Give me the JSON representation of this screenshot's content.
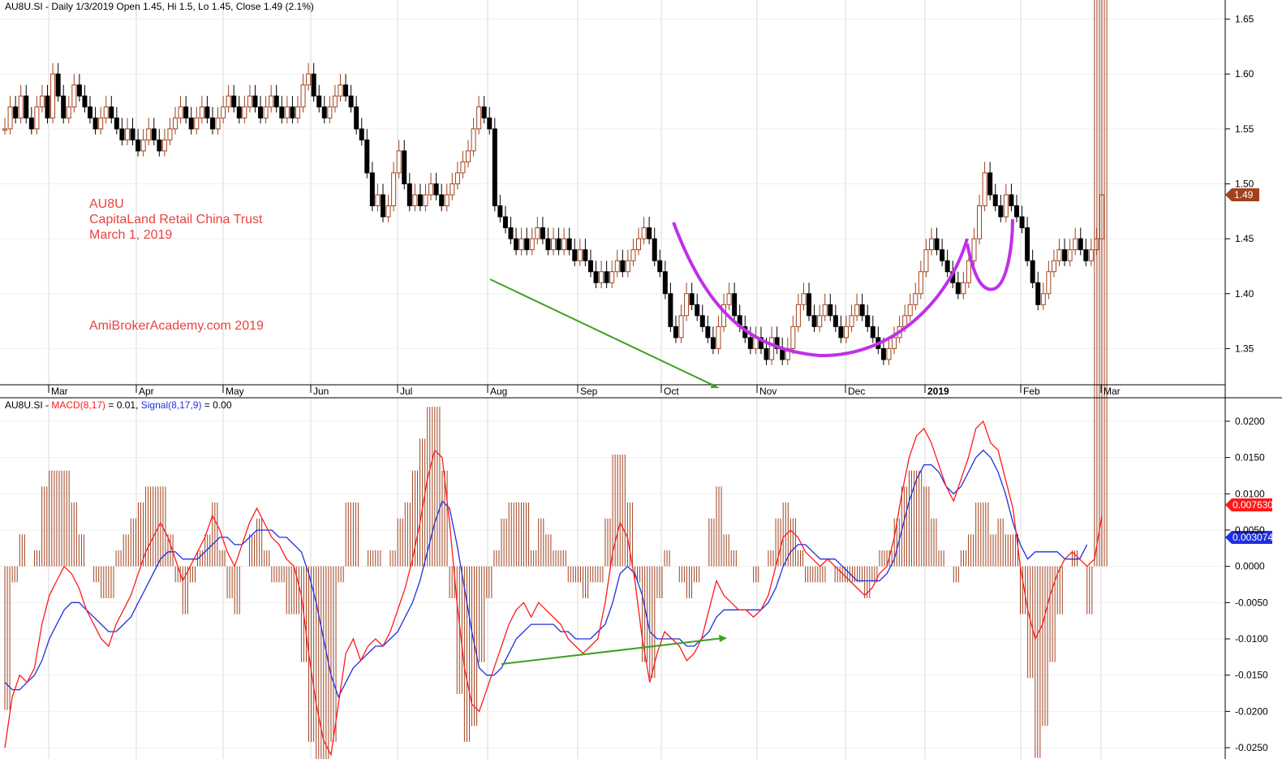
{
  "header": {
    "price_title": "AU8U.SI - Daily 1/3/2019 Open 1.45, Hi 1.5, Lo 1.45, Close 1.49 (2.1%)",
    "macd_prefix": "AU8U.SI - ",
    "macd_label": "MACD(8,17)",
    "macd_value": " = 0.01, ",
    "signal_label": "Signal(8,17,9)",
    "signal_value": " = 0.00"
  },
  "annotations": {
    "ticker": "AU8U",
    "name": "CapitaLand Retail China Trust",
    "date": "March 1, 2019",
    "site": "AmiBrokerAcademy.com  2019"
  },
  "colors": {
    "up": "#a0421e",
    "down": "#000000",
    "macd": "#ff1a1a",
    "signal": "#1f2fe0",
    "hist": "#a0421e",
    "cup": "#c030e8",
    "trend": "#3fa020",
    "text_red": "#e8433e"
  },
  "chart_data": [
    {
      "type": "candlestick",
      "months": [
        "Mar",
        "Apr",
        "May",
        "Jun",
        "Jul",
        "Aug",
        "Sep",
        "Oct",
        "Nov",
        "Dec",
        "2019",
        "Feb",
        "Mar"
      ],
      "ylim": [
        1.32,
        1.66
      ],
      "y_ticks": [
        "1.65",
        "1.60",
        "1.55",
        "1.50",
        "1.45",
        "1.40",
        "1.35"
      ],
      "last_price_tag": "1.49",
      "close_series": [
        1.55,
        1.57,
        1.56,
        1.58,
        1.56,
        1.55,
        1.57,
        1.58,
        1.56,
        1.6,
        1.58,
        1.56,
        1.57,
        1.59,
        1.58,
        1.57,
        1.56,
        1.55,
        1.56,
        1.57,
        1.56,
        1.55,
        1.54,
        1.55,
        1.54,
        1.53,
        1.54,
        1.55,
        1.54,
        1.53,
        1.54,
        1.55,
        1.56,
        1.57,
        1.56,
        1.55,
        1.56,
        1.57,
        1.56,
        1.55,
        1.56,
        1.57,
        1.58,
        1.57,
        1.56,
        1.57,
        1.58,
        1.57,
        1.56,
        1.57,
        1.58,
        1.57,
        1.56,
        1.57,
        1.56,
        1.57,
        1.59,
        1.6,
        1.58,
        1.57,
        1.56,
        1.57,
        1.58,
        1.59,
        1.58,
        1.57,
        1.55,
        1.54,
        1.51,
        1.48,
        1.49,
        1.47,
        1.48,
        1.51,
        1.53,
        1.5,
        1.48,
        1.49,
        1.48,
        1.49,
        1.5,
        1.49,
        1.48,
        1.49,
        1.5,
        1.51,
        1.52,
        1.53,
        1.55,
        1.57,
        1.56,
        1.55,
        1.48,
        1.47,
        1.46,
        1.45,
        1.44,
        1.45,
        1.44,
        1.45,
        1.46,
        1.45,
        1.44,
        1.45,
        1.44,
        1.45,
        1.44,
        1.43,
        1.44,
        1.43,
        1.42,
        1.41,
        1.42,
        1.41,
        1.42,
        1.43,
        1.42,
        1.43,
        1.44,
        1.45,
        1.46,
        1.45,
        1.43,
        1.42,
        1.4,
        1.37,
        1.36,
        1.38,
        1.4,
        1.39,
        1.38,
        1.37,
        1.36,
        1.35,
        1.37,
        1.39,
        1.4,
        1.38,
        1.37,
        1.36,
        1.35,
        1.36,
        1.35,
        1.34,
        1.36,
        1.35,
        1.34,
        1.35,
        1.37,
        1.39,
        1.4,
        1.38,
        1.37,
        1.38,
        1.39,
        1.38,
        1.37,
        1.36,
        1.37,
        1.38,
        1.39,
        1.38,
        1.37,
        1.36,
        1.35,
        1.34,
        1.35,
        1.36,
        1.37,
        1.38,
        1.39,
        1.4,
        1.42,
        1.44,
        1.45,
        1.44,
        1.43,
        1.42,
        1.41,
        1.4,
        1.41,
        1.43,
        1.45,
        1.48,
        1.51,
        1.49,
        1.48,
        1.47,
        1.49,
        1.48,
        1.47,
        1.46,
        1.43,
        1.41,
        1.39,
        1.4,
        1.42,
        1.43,
        1.44,
        1.43,
        1.44,
        1.45,
        1.44,
        1.43,
        1.44,
        1.45,
        1.49
      ]
    },
    {
      "type": "line",
      "title": "MACD(8,17) / Signal(8,17,9)",
      "ylim": [
        -0.026,
        0.021
      ],
      "y_ticks": [
        "0.0200",
        "0.0150",
        "0.0100",
        "0.0050",
        "0.0000",
        "-0.0050",
        "-0.0100",
        "-0.0150",
        "-0.0200",
        "-0.0250"
      ],
      "macd_tag": "0.007630",
      "signal_tag": "0.003074",
      "series": [
        {
          "name": "MACD(8,17)",
          "values": [
            -0.025,
            -0.018,
            -0.015,
            -0.016,
            -0.014,
            -0.008,
            -0.004,
            -0.002,
            0.0,
            -0.001,
            -0.003,
            -0.006,
            -0.008,
            -0.01,
            -0.011,
            -0.008,
            -0.006,
            -0.004,
            -0.001,
            0.002,
            0.004,
            0.006,
            0.004,
            0.001,
            -0.002,
            0.0,
            0.002,
            0.004,
            0.007,
            0.005,
            0.002,
            0.0,
            0.003,
            0.006,
            0.008,
            0.006,
            0.004,
            0.003,
            0.001,
            0.0,
            -0.004,
            -0.012,
            -0.019,
            -0.024,
            -0.026,
            -0.019,
            -0.012,
            -0.01,
            -0.013,
            -0.011,
            -0.01,
            -0.011,
            -0.009,
            -0.006,
            -0.003,
            0.001,
            0.006,
            0.012,
            0.016,
            0.015,
            0.006,
            -0.005,
            -0.014,
            -0.019,
            -0.02,
            -0.017,
            -0.014,
            -0.011,
            -0.008,
            -0.006,
            -0.005,
            -0.007,
            -0.005,
            -0.006,
            -0.007,
            -0.008,
            -0.01,
            -0.011,
            -0.012,
            -0.011,
            -0.01,
            -0.005,
            0.002,
            0.006,
            0.004,
            -0.002,
            -0.01,
            -0.016,
            -0.012,
            -0.009,
            -0.01,
            -0.011,
            -0.013,
            -0.012,
            -0.01,
            -0.006,
            -0.002,
            -0.004,
            -0.005,
            -0.006,
            -0.006,
            -0.007,
            -0.006,
            -0.004,
            0.0,
            0.004,
            0.005,
            0.004,
            0.002,
            0.001,
            0.0,
            0.001,
            0.0,
            -0.001,
            -0.002,
            -0.003,
            -0.004,
            -0.003,
            -0.001,
            0.0,
            0.004,
            0.01,
            0.015,
            0.018,
            0.019,
            0.017,
            0.014,
            0.011,
            0.009,
            0.012,
            0.015,
            0.019,
            0.02,
            0.017,
            0.016,
            0.012,
            0.008,
            0.0,
            -0.006,
            -0.01,
            -0.008,
            -0.004,
            -0.001,
            0.001,
            0.002,
            0.001,
            0.0,
            0.001,
            0.007
          ]
        },
        {
          "name": "Signal(8,17,9)",
          "values": [
            -0.016,
            -0.017,
            -0.017,
            -0.016,
            -0.015,
            -0.013,
            -0.01,
            -0.008,
            -0.006,
            -0.005,
            -0.005,
            -0.006,
            -0.007,
            -0.008,
            -0.009,
            -0.009,
            -0.008,
            -0.007,
            -0.005,
            -0.003,
            -0.001,
            0.001,
            0.002,
            0.002,
            0.001,
            0.001,
            0.001,
            0.002,
            0.003,
            0.004,
            0.004,
            0.003,
            0.003,
            0.004,
            0.005,
            0.005,
            0.005,
            0.004,
            0.004,
            0.003,
            0.002,
            -0.001,
            -0.005,
            -0.01,
            -0.015,
            -0.018,
            -0.016,
            -0.014,
            -0.013,
            -0.012,
            -0.011,
            -0.011,
            -0.01,
            -0.009,
            -0.007,
            -0.005,
            -0.002,
            0.002,
            0.006,
            0.009,
            0.008,
            0.003,
            -0.003,
            -0.009,
            -0.014,
            -0.015,
            -0.015,
            -0.014,
            -0.012,
            -0.01,
            -0.009,
            -0.008,
            -0.008,
            -0.008,
            -0.008,
            -0.009,
            -0.009,
            -0.01,
            -0.01,
            -0.01,
            -0.009,
            -0.008,
            -0.005,
            -0.001,
            0.0,
            -0.001,
            -0.004,
            -0.009,
            -0.01,
            -0.01,
            -0.01,
            -0.01,
            -0.011,
            -0.011,
            -0.01,
            -0.009,
            -0.007,
            -0.006,
            -0.006,
            -0.006,
            -0.006,
            -0.006,
            -0.006,
            -0.005,
            -0.003,
            0.0,
            0.002,
            0.003,
            0.003,
            0.002,
            0.001,
            0.001,
            0.001,
            0.0,
            -0.001,
            -0.002,
            -0.002,
            -0.002,
            -0.002,
            -0.001,
            0.001,
            0.005,
            0.009,
            0.012,
            0.014,
            0.014,
            0.013,
            0.011,
            0.01,
            0.011,
            0.013,
            0.015,
            0.016,
            0.015,
            0.013,
            0.01,
            0.006,
            0.003,
            0.001,
            0.002,
            0.002,
            0.002,
            0.002,
            0.001,
            0.001,
            0.001,
            0.003
          ]
        }
      ]
    }
  ]
}
